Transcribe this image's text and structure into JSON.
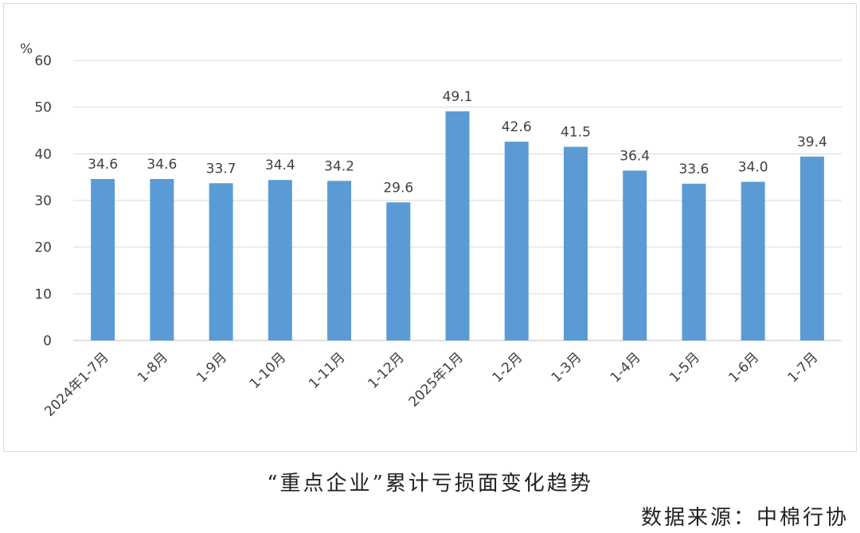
{
  "chart_data": {
    "type": "bar",
    "unit_label": "%",
    "categories": [
      "2024年1-7月",
      "1-8月",
      "1-9月",
      "1-10月",
      "1-11月",
      "1-12月",
      "2025年1月",
      "1-2月",
      "1-3月",
      "1-4月",
      "1-5月",
      "1-6月",
      "1-7月"
    ],
    "values": [
      34.6,
      34.6,
      33.7,
      34.4,
      34.2,
      29.6,
      49.1,
      42.6,
      41.5,
      36.4,
      33.6,
      34.0,
      39.4
    ],
    "ylim": [
      0,
      60
    ],
    "yticks": [
      0,
      10,
      20,
      30,
      40,
      50,
      60
    ],
    "grid": true,
    "bar_color": "#5b9bd5",
    "grid_color": "#d9d9d9"
  },
  "caption": "“重点企业”累计亏损面变化趋势",
  "source": "数据来源：中棉行协"
}
